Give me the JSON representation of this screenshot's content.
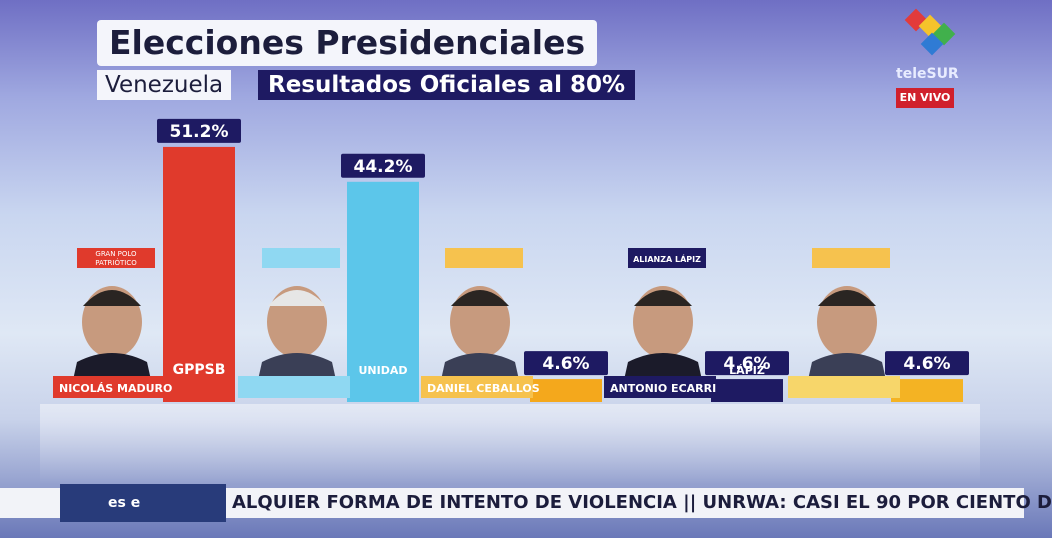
{
  "header": {
    "title": "Elecciones Presidenciales",
    "country": "Venezuela",
    "subtitle": "Resultados Oficiales al 80%"
  },
  "channel": {
    "logo_text": "teleSUR",
    "live_label": "EN VIVO"
  },
  "ticker": {
    "label": "es e",
    "text": "ALQUIER FORMA DE INTENTO DE VIOLENCIA  ||  UNRWA: CASI EL 90 POR CIENTO D"
  },
  "chart_data": {
    "type": "bar",
    "title": "Elecciones Presidenciales",
    "subtitle": "Resultados Oficiales al 80%",
    "categories": [
      "NICOLÁS MADURO",
      "",
      "DANIEL CEBALLOS",
      "ANTONIO ECARRI",
      ""
    ],
    "values": [
      51.2,
      44.2,
      4.6,
      4.6,
      4.6
    ],
    "value_labels": [
      "51.2%",
      "44.2%",
      "4.6%",
      "4.6%",
      "4.6%"
    ],
    "party_labels": [
      "GRAN POLO PATRIÓTICO",
      "",
      "",
      "ALIANZA LÁPIZ",
      ""
    ],
    "bar_marks": [
      "GPPSB",
      "UNIDAD",
      "",
      "LÁPIZ",
      ""
    ],
    "colors": [
      "#e03a2c",
      "#5cc6ea",
      "#f4a81c",
      "#1e1a62",
      "#f4b323"
    ],
    "ylim": [
      0,
      60
    ],
    "grid": false,
    "legend": "none"
  }
}
